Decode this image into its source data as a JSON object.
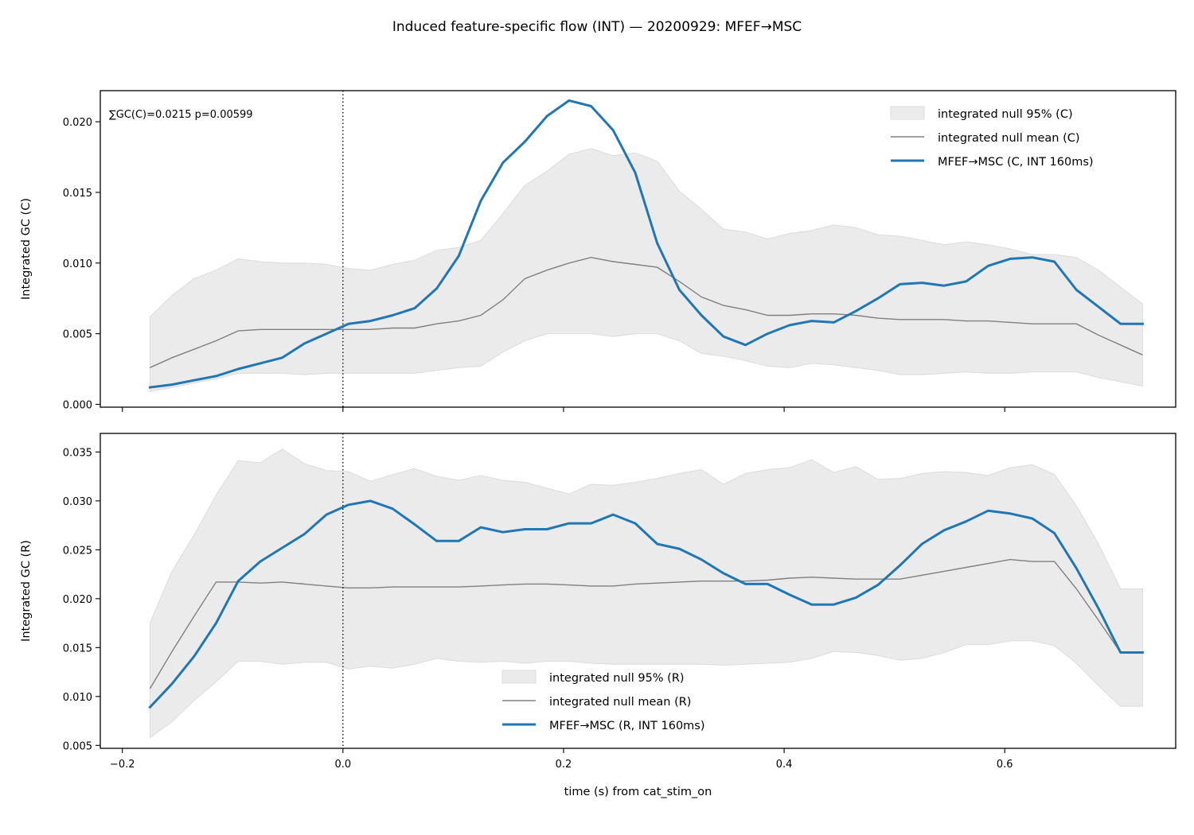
{
  "figure": {
    "title": "Induced feature-specific flow (INT) — 20200929: MFEF→MSC"
  },
  "colors": {
    "signal": "#1f77b4",
    "null_mean": "#808080",
    "null_band": "#ebebeb",
    "axes": "#000000"
  },
  "chart_data": [
    {
      "type": "line",
      "panel": "top",
      "ylabel": "Integrated GC (C)",
      "xlabel": "",
      "xlim": [
        -0.22,
        0.755
      ],
      "ylim": [
        -0.0002,
        0.0222
      ],
      "xticks": [
        -0.2,
        0.0,
        0.2,
        0.4,
        0.6
      ],
      "yticks": [
        0.0,
        0.005,
        0.01,
        0.015,
        0.02
      ],
      "ytick_labels": [
        "0.000",
        "0.005",
        "0.010",
        "0.015",
        "0.020"
      ],
      "show_xtick_labels": false,
      "vline_x": 0.0,
      "annotation": "∑GC(C)=0.0215  p=0.00599",
      "legend_position": "upper right",
      "legend": [
        {
          "key": "band",
          "label": "integrated null 95% (C)"
        },
        {
          "key": "mean",
          "label": "integrated null mean (C)"
        },
        {
          "key": "signal",
          "label": "MFEF→MSC (C, INT 160ms)"
        }
      ],
      "x": [
        -0.175,
        -0.155,
        -0.135,
        -0.115,
        -0.095,
        -0.075,
        -0.055,
        -0.035,
        -0.015,
        0.005,
        0.025,
        0.045,
        0.065,
        0.085,
        0.105,
        0.125,
        0.145,
        0.165,
        0.185,
        0.205,
        0.225,
        0.245,
        0.265,
        0.285,
        0.305,
        0.325,
        0.345,
        0.365,
        0.385,
        0.405,
        0.425,
        0.445,
        0.465,
        0.485,
        0.505,
        0.525,
        0.545,
        0.565,
        0.585,
        0.605,
        0.625,
        0.645,
        0.665,
        0.685,
        0.705,
        0.725
      ],
      "series": [
        {
          "key": "band_upper",
          "values": [
            0.0062,
            0.0077,
            0.0089,
            0.0095,
            0.0103,
            0.0101,
            0.01,
            0.01,
            0.0099,
            0.0096,
            0.0095,
            0.0099,
            0.0102,
            0.0109,
            0.0111,
            0.0116,
            0.0135,
            0.0155,
            0.0165,
            0.0177,
            0.0181,
            0.0176,
            0.0178,
            0.0172,
            0.0151,
            0.0138,
            0.0124,
            0.0122,
            0.0117,
            0.0121,
            0.0123,
            0.0127,
            0.0125,
            0.012,
            0.0119,
            0.0116,
            0.0113,
            0.0115,
            0.0113,
            0.011,
            0.0106,
            0.0106,
            0.0104,
            0.0095,
            0.0083,
            0.0071
          ]
        },
        {
          "key": "band_lower",
          "values": [
            0.0009,
            0.0012,
            0.0015,
            0.0018,
            0.0022,
            0.0022,
            0.0022,
            0.0021,
            0.0022,
            0.0022,
            0.0022,
            0.0022,
            0.0022,
            0.0024,
            0.0026,
            0.0027,
            0.0037,
            0.0045,
            0.005,
            0.005,
            0.005,
            0.0048,
            0.005,
            0.005,
            0.0045,
            0.0036,
            0.0034,
            0.0031,
            0.0027,
            0.0026,
            0.0029,
            0.0028,
            0.0026,
            0.0024,
            0.0021,
            0.0021,
            0.0022,
            0.0023,
            0.0022,
            0.0022,
            0.0023,
            0.0023,
            0.0023,
            0.0019,
            0.0016,
            0.0013
          ]
        },
        {
          "key": "null_mean",
          "values": [
            0.0026,
            0.0033,
            0.0039,
            0.0045,
            0.0052,
            0.0053,
            0.0053,
            0.0053,
            0.0053,
            0.0053,
            0.0053,
            0.0054,
            0.0054,
            0.0057,
            0.0059,
            0.0063,
            0.0074,
            0.0089,
            0.0095,
            0.01,
            0.0104,
            0.0101,
            0.0099,
            0.0097,
            0.0087,
            0.0076,
            0.007,
            0.0067,
            0.0063,
            0.0063,
            0.0064,
            0.0064,
            0.0063,
            0.0061,
            0.006,
            0.006,
            0.006,
            0.0059,
            0.0059,
            0.0058,
            0.0057,
            0.0057,
            0.0057,
            0.0049,
            0.0042,
            0.0035
          ]
        },
        {
          "key": "signal",
          "name": "MFEF→MSC (C, INT 160ms)",
          "values": [
            0.0012,
            0.0014,
            0.0017,
            0.002,
            0.0025,
            0.0029,
            0.0033,
            0.0043,
            0.005,
            0.0057,
            0.0059,
            0.0063,
            0.0068,
            0.0082,
            0.0105,
            0.0144,
            0.0171,
            0.0186,
            0.0204,
            0.0215,
            0.0211,
            0.0194,
            0.0164,
            0.0114,
            0.0081,
            0.0063,
            0.0048,
            0.0042,
            0.005,
            0.0056,
            0.0059,
            0.0058,
            0.0066,
            0.0075,
            0.0085,
            0.0086,
            0.0084,
            0.0087,
            0.0098,
            0.0103,
            0.0104,
            0.0101,
            0.0081,
            0.0069,
            0.0057,
            0.0057
          ]
        }
      ]
    },
    {
      "type": "line",
      "panel": "bottom",
      "ylabel": "Integrated GC (R)",
      "xlabel": "time (s) from cat_stim_on",
      "xlim": [
        -0.22,
        0.755
      ],
      "ylim": [
        0.0047,
        0.0369
      ],
      "xticks": [
        -0.2,
        0.0,
        0.2,
        0.4,
        0.6
      ],
      "xtick_labels": [
        "−0.2",
        "0.0",
        "0.2",
        "0.4",
        "0.6"
      ],
      "yticks": [
        0.005,
        0.01,
        0.015,
        0.02,
        0.025,
        0.03,
        0.035
      ],
      "ytick_labels": [
        "0.005",
        "0.010",
        "0.015",
        "0.020",
        "0.025",
        "0.030",
        "0.035"
      ],
      "show_xtick_labels": true,
      "vline_x": 0.0,
      "legend_position": "lower center",
      "legend": [
        {
          "key": "band",
          "label": "integrated null 95% (R)"
        },
        {
          "key": "mean",
          "label": "integrated null mean (R)"
        },
        {
          "key": "signal",
          "label": "MFEF→MSC (R, INT 160ms)"
        }
      ],
      "x": [
        -0.175,
        -0.155,
        -0.135,
        -0.115,
        -0.095,
        -0.075,
        -0.055,
        -0.035,
        -0.015,
        0.005,
        0.025,
        0.045,
        0.065,
        0.085,
        0.105,
        0.125,
        0.145,
        0.165,
        0.185,
        0.205,
        0.225,
        0.245,
        0.265,
        0.285,
        0.305,
        0.325,
        0.345,
        0.365,
        0.385,
        0.405,
        0.425,
        0.445,
        0.465,
        0.485,
        0.505,
        0.525,
        0.545,
        0.565,
        0.585,
        0.605,
        0.625,
        0.645,
        0.665,
        0.685,
        0.705,
        0.725
      ],
      "series": [
        {
          "key": "band_upper",
          "values": [
            0.0175,
            0.0228,
            0.0265,
            0.0306,
            0.0341,
            0.0339,
            0.0353,
            0.0338,
            0.0331,
            0.033,
            0.032,
            0.0327,
            0.0333,
            0.0325,
            0.0321,
            0.0326,
            0.0321,
            0.0319,
            0.0313,
            0.0307,
            0.0317,
            0.0316,
            0.0319,
            0.0323,
            0.0328,
            0.0332,
            0.0317,
            0.0328,
            0.0332,
            0.0334,
            0.0342,
            0.0329,
            0.0335,
            0.0322,
            0.0323,
            0.0328,
            0.033,
            0.0329,
            0.0326,
            0.0334,
            0.0337,
            0.0327,
            0.0295,
            0.0256,
            0.021,
            0.021
          ]
        },
        {
          "key": "band_lower",
          "values": [
            0.0058,
            0.0074,
            0.0096,
            0.0115,
            0.0136,
            0.0136,
            0.0133,
            0.0135,
            0.0135,
            0.0128,
            0.0131,
            0.0129,
            0.0133,
            0.0139,
            0.0136,
            0.0135,
            0.0136,
            0.0134,
            0.0136,
            0.0136,
            0.0134,
            0.0133,
            0.0133,
            0.0133,
            0.0133,
            0.0133,
            0.0132,
            0.0133,
            0.0134,
            0.0135,
            0.0139,
            0.0146,
            0.0145,
            0.0142,
            0.0137,
            0.0139,
            0.0145,
            0.0153,
            0.0153,
            0.0157,
            0.0157,
            0.0152,
            0.0134,
            0.0111,
            0.009,
            0.009
          ]
        },
        {
          "key": "null_mean",
          "values": [
            0.0108,
            0.0146,
            0.0182,
            0.0217,
            0.0217,
            0.0216,
            0.0217,
            0.0215,
            0.0213,
            0.0211,
            0.0211,
            0.0212,
            0.0212,
            0.0212,
            0.0212,
            0.0213,
            0.0214,
            0.0215,
            0.0215,
            0.0214,
            0.0213,
            0.0213,
            0.0215,
            0.0216,
            0.0217,
            0.0218,
            0.0218,
            0.0218,
            0.0219,
            0.0221,
            0.0222,
            0.0221,
            0.022,
            0.022,
            0.022,
            0.0224,
            0.0228,
            0.0232,
            0.0236,
            0.024,
            0.0238,
            0.0238,
            0.021,
            0.0178,
            0.0145,
            0.0145
          ]
        },
        {
          "key": "signal",
          "name": "MFEF→MSC (R, INT 160ms)",
          "values": [
            0.0089,
            0.0113,
            0.0141,
            0.0175,
            0.0218,
            0.0238,
            0.0252,
            0.0266,
            0.0286,
            0.0296,
            0.03,
            0.0292,
            0.0276,
            0.0259,
            0.0259,
            0.0273,
            0.0268,
            0.0271,
            0.0271,
            0.0277,
            0.0277,
            0.0286,
            0.0277,
            0.0256,
            0.0251,
            0.024,
            0.0226,
            0.0215,
            0.0215,
            0.0204,
            0.0194,
            0.0194,
            0.0201,
            0.0214,
            0.0234,
            0.0256,
            0.027,
            0.0279,
            0.029,
            0.0287,
            0.0282,
            0.0267,
            0.0231,
            0.019,
            0.0145,
            0.0145
          ]
        }
      ]
    }
  ]
}
